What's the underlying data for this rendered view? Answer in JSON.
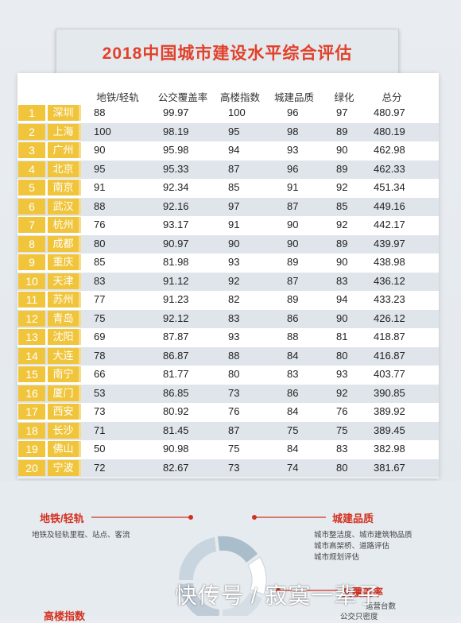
{
  "title": "2018中国城市建设水平综合评估",
  "headers": [
    "地铁/轻轨",
    "公交覆盖率",
    "高楼指数",
    "城建品质",
    "绿化",
    "总分"
  ],
  "rows": [
    {
      "rank": "1",
      "city": "深圳",
      "metro": "88",
      "bus": "99.97",
      "highrise": "100",
      "quality": "96",
      "green": "97",
      "total": "480.97"
    },
    {
      "rank": "2",
      "city": "上海",
      "metro": "100",
      "bus": "98.19",
      "highrise": "95",
      "quality": "98",
      "green": "89",
      "total": "480.19"
    },
    {
      "rank": "3",
      "city": "广州",
      "metro": "90",
      "bus": "95.98",
      "highrise": "94",
      "quality": "93",
      "green": "90",
      "total": "462.98"
    },
    {
      "rank": "4",
      "city": "北京",
      "metro": "95",
      "bus": "95.33",
      "highrise": "87",
      "quality": "96",
      "green": "89",
      "total": "462.33"
    },
    {
      "rank": "5",
      "city": "南京",
      "metro": "91",
      "bus": "92.34",
      "highrise": "85",
      "quality": "91",
      "green": "92",
      "total": "451.34"
    },
    {
      "rank": "6",
      "city": "武汉",
      "metro": "88",
      "bus": "92.16",
      "highrise": "97",
      "quality": "87",
      "green": "85",
      "total": "449.16"
    },
    {
      "rank": "7",
      "city": "杭州",
      "metro": "76",
      "bus": "93.17",
      "highrise": "91",
      "quality": "90",
      "green": "92",
      "total": "442.17"
    },
    {
      "rank": "8",
      "city": "成都",
      "metro": "80",
      "bus": "90.97",
      "highrise": "90",
      "quality": "90",
      "green": "89",
      "total": "439.97"
    },
    {
      "rank": "9",
      "city": "重庆",
      "metro": "85",
      "bus": "81.98",
      "highrise": "93",
      "quality": "89",
      "green": "90",
      "total": "438.98"
    },
    {
      "rank": "10",
      "city": "天津",
      "metro": "83",
      "bus": "91.12",
      "highrise": "92",
      "quality": "87",
      "green": "83",
      "total": "436.12"
    },
    {
      "rank": "11",
      "city": "苏州",
      "metro": "77",
      "bus": "91.23",
      "highrise": "82",
      "quality": "89",
      "green": "94",
      "total": "433.23"
    },
    {
      "rank": "12",
      "city": "青岛",
      "metro": "75",
      "bus": "92.12",
      "highrise": "83",
      "quality": "86",
      "green": "90",
      "total": "426.12"
    },
    {
      "rank": "13",
      "city": "沈阳",
      "metro": "69",
      "bus": "87.87",
      "highrise": "93",
      "quality": "88",
      "green": "81",
      "total": "418.87"
    },
    {
      "rank": "14",
      "city": "大连",
      "metro": "78",
      "bus": "86.87",
      "highrise": "88",
      "quality": "84",
      "green": "80",
      "total": "416.87"
    },
    {
      "rank": "15",
      "city": "南宁",
      "metro": "66",
      "bus": "81.77",
      "highrise": "80",
      "quality": "83",
      "green": "93",
      "total": "403.77"
    },
    {
      "rank": "16",
      "city": "厦门",
      "metro": "53",
      "bus": "86.85",
      "highrise": "73",
      "quality": "86",
      "green": "92",
      "total": "390.85"
    },
    {
      "rank": "17",
      "city": "西安",
      "metro": "73",
      "bus": "80.92",
      "highrise": "76",
      "quality": "84",
      "green": "76",
      "total": "389.92"
    },
    {
      "rank": "18",
      "city": "长沙",
      "metro": "71",
      "bus": "81.45",
      "highrise": "87",
      "quality": "75",
      "green": "75",
      "total": "389.45"
    },
    {
      "rank": "19",
      "city": "佛山",
      "metro": "50",
      "bus": "90.98",
      "highrise": "75",
      "quality": "84",
      "green": "83",
      "total": "382.98"
    },
    {
      "rank": "20",
      "city": "宁波",
      "metro": "72",
      "bus": "82.67",
      "highrise": "73",
      "quality": "74",
      "green": "80",
      "total": "381.67"
    }
  ],
  "legend": {
    "metro": {
      "title": "地铁/轻轨",
      "items": [
        "地铁及轻轨里程、站点、客流"
      ]
    },
    "quality": {
      "title": "城建品质",
      "items": [
        "城市整洁度、城市建筑物品质",
        "城市高架桥、道路评估",
        "城市规划评估"
      ]
    },
    "bus": {
      "title": "交覆盖率",
      "items": [
        "运营台数",
        "公交只密度"
      ]
    },
    "highrise": {
      "title": "高楼指数"
    }
  },
  "watermark": "快传号 / 寂寞一辈子",
  "colors": {
    "accent": "#e1402a",
    "badge": "#f0c53c",
    "stripe": "#dfe5ea"
  }
}
